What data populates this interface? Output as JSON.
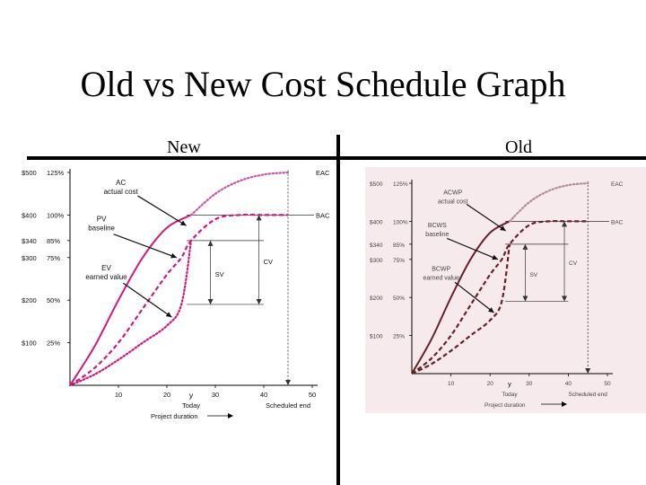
{
  "slide": {
    "title": "Old vs New Cost Schedule Graph",
    "left_label": "New",
    "right_label": "Old"
  },
  "colors": {
    "new_curve": "#d01a7e",
    "old_curve": "#6b1f2a",
    "old_background": "#f7eaed",
    "eac_new": "#c85a9c",
    "eac_old": "#b08a96"
  },
  "chart_data": [
    {
      "type": "line",
      "panel": "New",
      "y_tick_labels": [
        "$500  125%",
        "$400  100%",
        "$340  85%",
        "$300  75%",
        "$200  50%",
        "$100  25%"
      ],
      "y_ticks": [
        500,
        400,
        340,
        300,
        200,
        100
      ],
      "x_tick_labels": [
        "10",
        "20",
        "30",
        "40",
        "50"
      ],
      "x_ticks": [
        10,
        20,
        30,
        40,
        50
      ],
      "xlim": [
        0,
        50
      ],
      "ylim": [
        0,
        500
      ],
      "xlabel": "Project duration",
      "today_label": "Today",
      "today_x": 25,
      "scheduled_end_label": "Scheduled end",
      "scheduled_end_x": 45,
      "series": [
        {
          "name": "AC",
          "style": "solid",
          "x": [
            0,
            5,
            10,
            15,
            20,
            25
          ],
          "y": [
            0,
            90,
            200,
            300,
            370,
            400
          ]
        },
        {
          "name": "PV",
          "style": "dashed",
          "x": [
            0,
            5,
            10,
            15,
            20,
            23,
            25,
            30,
            35,
            40,
            45
          ],
          "y": [
            0,
            40,
            100,
            180,
            260,
            300,
            340,
            390,
            400,
            400,
            400
          ]
        },
        {
          "name": "EV",
          "style": "dotted",
          "x": [
            0,
            5,
            10,
            15,
            20,
            23,
            25
          ],
          "y": [
            0,
            25,
            60,
            100,
            140,
            190,
            340
          ]
        },
        {
          "name": "EAC",
          "style": "dotted",
          "x": [
            25,
            30,
            35,
            40,
            45
          ],
          "y": [
            400,
            450,
            480,
            495,
            500
          ]
        }
      ],
      "annotations": {
        "ac": [
          "AC",
          "actual cost"
        ],
        "pv": [
          "PV",
          "baseline"
        ],
        "ev": [
          "EV",
          "earned value"
        ],
        "sv": "SV",
        "cv": "CV",
        "eac": "EAC",
        "bac": "BAC"
      }
    },
    {
      "type": "line",
      "panel": "Old",
      "y_tick_labels": [
        "$500  125%",
        "$400  100%",
        "$340  85%",
        "$300  75%",
        "$200  50%",
        "$100  25%"
      ],
      "y_ticks": [
        500,
        400,
        340,
        300,
        200,
        100
      ],
      "x_tick_labels": [
        "10",
        "20",
        "30",
        "40",
        "50"
      ],
      "x_ticks": [
        10,
        20,
        30,
        40,
        50
      ],
      "xlim": [
        0,
        50
      ],
      "ylim": [
        0,
        500
      ],
      "xlabel": "Project duration",
      "today_label": "Today",
      "today_x": 25,
      "scheduled_end_label": "Scheduled end",
      "scheduled_end_x": 45,
      "series": [
        {
          "name": "ACWP",
          "style": "solid",
          "x": [
            0,
            5,
            10,
            15,
            20,
            25
          ],
          "y": [
            0,
            90,
            200,
            300,
            370,
            400
          ]
        },
        {
          "name": "BCWS",
          "style": "dashed",
          "x": [
            0,
            5,
            10,
            15,
            20,
            23,
            25,
            30,
            35,
            40,
            45
          ],
          "y": [
            0,
            40,
            100,
            180,
            260,
            300,
            340,
            390,
            400,
            400,
            400
          ]
        },
        {
          "name": "BCWP",
          "style": "dashed",
          "x": [
            0,
            5,
            10,
            15,
            20,
            23,
            25
          ],
          "y": [
            0,
            25,
            60,
            100,
            140,
            190,
            340
          ]
        },
        {
          "name": "EAC",
          "style": "dotted",
          "x": [
            25,
            30,
            35,
            40,
            45
          ],
          "y": [
            400,
            450,
            480,
            495,
            500
          ]
        }
      ],
      "annotations": {
        "ac": [
          "ACWP",
          "actual cost"
        ],
        "pv": [
          "BCWS",
          "baseline"
        ],
        "ev": [
          "BCWP",
          "earned value"
        ],
        "sv": "SV",
        "cv": "CV",
        "eac": "EAC",
        "bac": "BAC"
      }
    }
  ]
}
